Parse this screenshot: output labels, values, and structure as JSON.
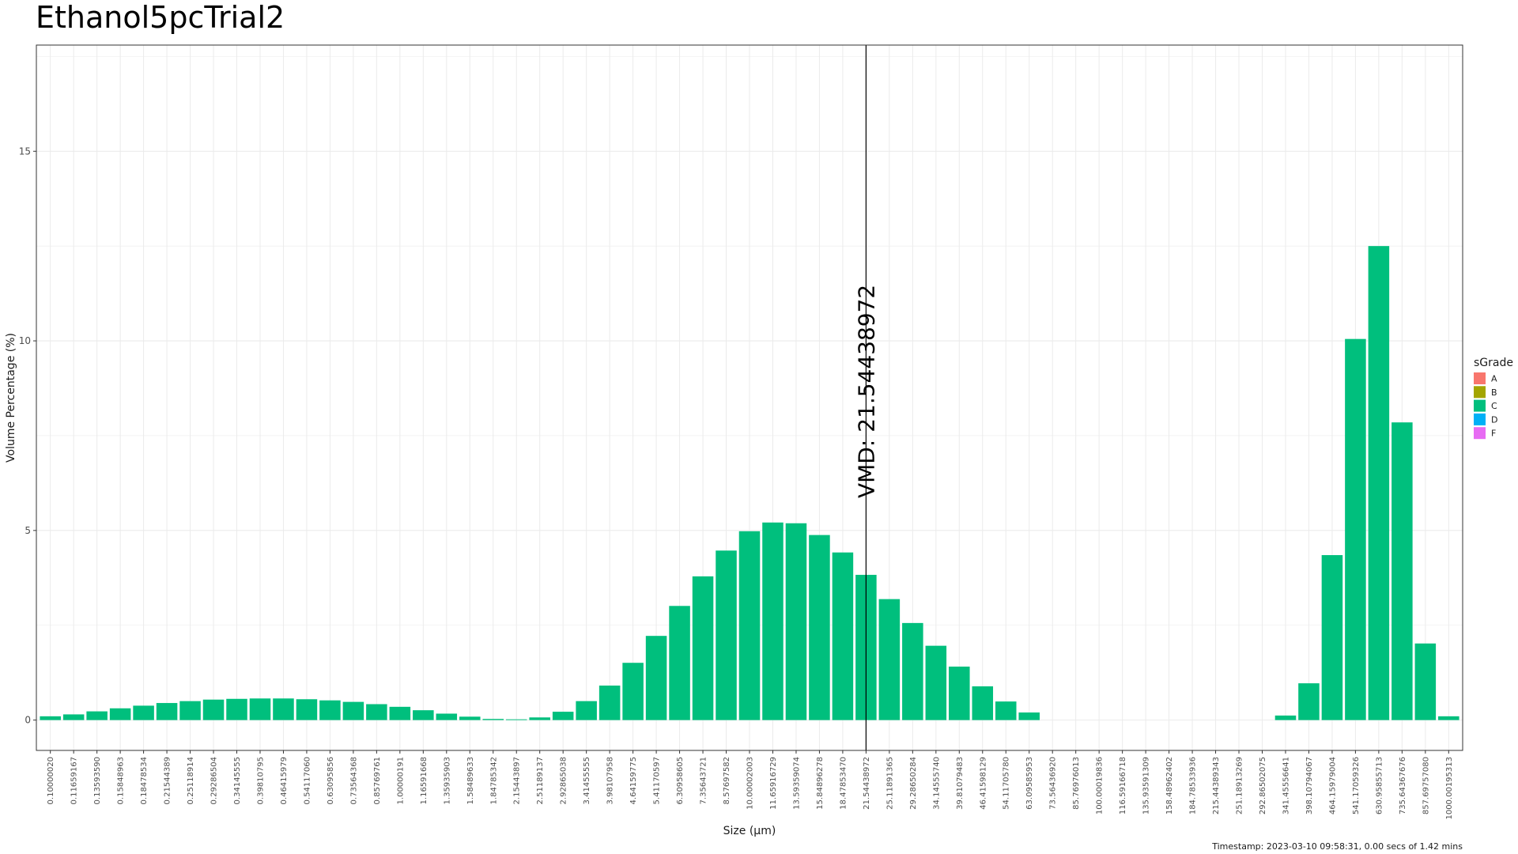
{
  "title": "Ethanol5pcTrial2",
  "timestamp": "Timestamp: 2023-03-10 09:58:31, 0.00 secs of 1.42 mins",
  "vmd_label": "VMD: 21.54438972",
  "colors": {
    "bar": "#00BF7D",
    "grid": "#ebebeb",
    "panel_border": "#333333"
  },
  "chart_data": {
    "type": "bar",
    "xlabel": "Size (µm)",
    "ylabel": "Volume Percentage (%)",
    "ylim": [
      -0.8,
      17.8
    ],
    "yticks": [
      0,
      5,
      10,
      15
    ],
    "grid": true,
    "legend": {
      "title": "sGrade",
      "placement": "right",
      "entries": [
        {
          "label": "A",
          "color": "#F8766D"
        },
        {
          "label": "B",
          "color": "#A3A500"
        },
        {
          "label": "C",
          "color": "#00BF7D"
        },
        {
          "label": "D",
          "color": "#00B0F6"
        },
        {
          "label": "F",
          "color": "#E76BF3"
        }
      ]
    },
    "vmd": {
      "value": 21.54438972,
      "category": "21.54438972"
    },
    "categories": [
      "0.10000020",
      "0.11659167",
      "0.13593590",
      "0.15848963",
      "0.18478534",
      "0.21544389",
      "0.25118914",
      "0.29286504",
      "0.34145555",
      "0.39810795",
      "0.46415979",
      "0.54117060",
      "0.63095856",
      "0.73564368",
      "0.85769761",
      "1.00000191",
      "1.16591668",
      "1.35935903",
      "1.58489633",
      "1.84785342",
      "2.15443897",
      "2.51189137",
      "2.92865038",
      "3.41455555",
      "3.98107958",
      "4.64159775",
      "5.41170597",
      "6.30958605",
      "7.35643721",
      "8.57697582",
      "10.00002003",
      "11.65916729",
      "13.59359074",
      "15.84896278",
      "18.47853470",
      "21.54438972",
      "25.11891365",
      "29.28650284",
      "34.14555740",
      "39.81079483",
      "46.41598129",
      "54.11705780",
      "63.09585953",
      "73.56436920",
      "85.76976013",
      "100.00019836",
      "116.59166718",
      "135.93591309",
      "158.48962402",
      "184.78533936",
      "215.44389343",
      "251.18913269",
      "292.86502075",
      "341.45556641",
      "398.10794067",
      "464.15979004",
      "541.17059326",
      "630.95855713",
      "735.64367676",
      "857.69757080",
      "1000.00195313"
    ],
    "series": [
      {
        "grade": "C",
        "color": "#00BF7D",
        "values": [
          0.1,
          0.15,
          0.23,
          0.31,
          0.38,
          0.45,
          0.5,
          0.54,
          0.56,
          0.57,
          0.57,
          0.55,
          0.52,
          0.48,
          0.42,
          0.35,
          0.26,
          0.17,
          0.09,
          0.03,
          0.02,
          0.07,
          0.22,
          0.5,
          0.91,
          1.51,
          2.22,
          3.01,
          3.79,
          4.47,
          4.98,
          5.21,
          5.19,
          4.88,
          4.42,
          3.83,
          3.19,
          2.56,
          1.96,
          1.41,
          0.89,
          0.49,
          0.2,
          0,
          0,
          0,
          0,
          0,
          0,
          0,
          0,
          0,
          0,
          0.12,
          0.97,
          4.35,
          10.05,
          12.5,
          7.85,
          2.02,
          0.1
        ]
      }
    ]
  }
}
